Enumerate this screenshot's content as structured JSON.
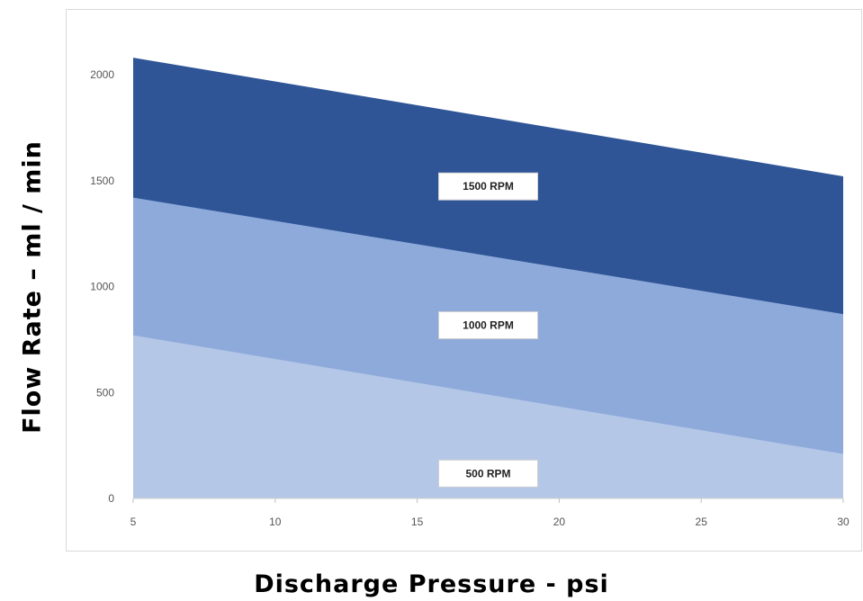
{
  "chart_data": {
    "type": "area",
    "x": [
      5,
      30
    ],
    "xlabel": "Discharge Pressure - psi",
    "ylabel": "Flow Rate – ml / min",
    "xlim": [
      5,
      30
    ],
    "ylim": [
      0,
      2000
    ],
    "x_ticks": [
      "5",
      "10",
      "15",
      "20",
      "25",
      "30"
    ],
    "y_ticks": [
      "0",
      "500",
      "1000",
      "1500",
      "2000"
    ],
    "grid": false,
    "legend": "none",
    "series": [
      {
        "name": "500 RPM",
        "values": [
          770,
          210
        ],
        "color": "#b4c7e7"
      },
      {
        "name": "1000 RPM",
        "values": [
          1420,
          870
        ],
        "color": "#8eaadb"
      },
      {
        "name": "1500 RPM",
        "values": [
          2080,
          1520
        ],
        "color": "#2f5597"
      }
    ]
  }
}
